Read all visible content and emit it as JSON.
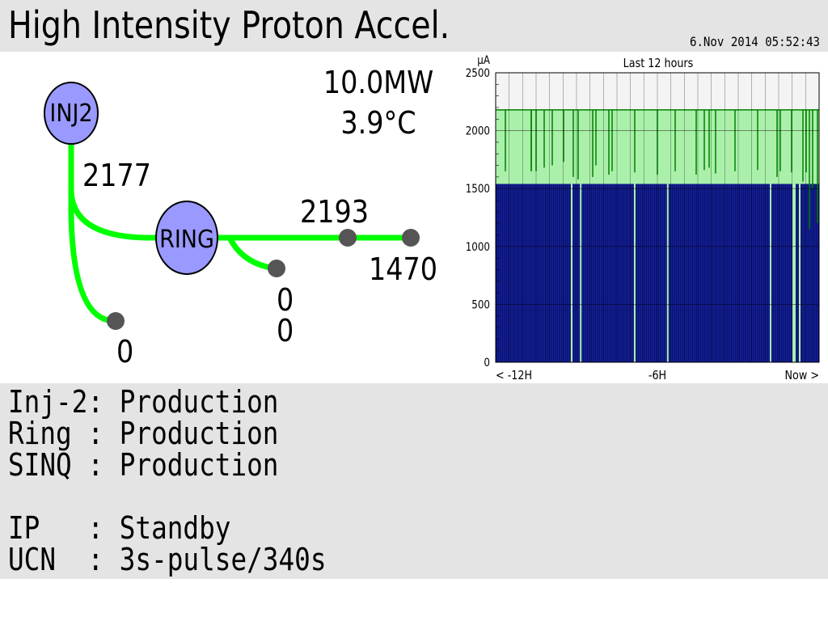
{
  "header": {
    "title": "High Intensity Proton Accel.",
    "datetime": "6.Nov 2014 05:52:43"
  },
  "diagram": {
    "inj2_label": "INJ2",
    "ring_label": "RING",
    "inj2_current": "2177",
    "ring_current": "2193",
    "sinq_current": "1470",
    "inj2_side_current": "0",
    "ring_branch_current_1": "0",
    "ring_branch_current_2": "0",
    "power": "10.0MW",
    "temperature": "3.9°C",
    "colors": {
      "beamline": "#00ff00",
      "node": "#9999ff",
      "endpoint": "#555555"
    }
  },
  "status": {
    "lines": [
      "Inj-2: Production",
      "Ring : Production",
      "SINQ : Production",
      "",
      "IP   : Standby",
      "UCN  : 3s-pulse/340s"
    ]
  },
  "chart_data": {
    "type": "area",
    "title": "Last 12 hours",
    "ylabel": "µA",
    "ylim": [
      0,
      2500
    ],
    "yticks": [
      0,
      500,
      1000,
      1500,
      2000,
      2500
    ],
    "xtick_labels": [
      "< -12H",
      "-6H",
      "Now >"
    ],
    "grid": true,
    "series": [
      {
        "color": "#008000",
        "fill": "#aaf0aa",
        "baseline": 2180,
        "dips": [
          [
            0.03,
            1650
          ],
          [
            0.11,
            1650
          ],
          [
            0.11,
            1650
          ],
          [
            0.125,
            1650
          ],
          [
            0.15,
            1680
          ],
          [
            0.175,
            1700
          ],
          [
            0.21,
            1730
          ],
          [
            0.24,
            1600
          ],
          [
            0.255,
            1580
          ],
          [
            0.3,
            1600
          ],
          [
            0.31,
            1700
          ],
          [
            0.35,
            1620
          ],
          [
            0.36,
            1650
          ],
          [
            0.43,
            1640
          ],
          [
            0.5,
            1620
          ],
          [
            0.555,
            1650
          ],
          [
            0.62,
            1620
          ],
          [
            0.645,
            1660
          ],
          [
            0.66,
            1680
          ],
          [
            0.68,
            1630
          ],
          [
            0.74,
            1650
          ],
          [
            0.81,
            1660
          ],
          [
            0.87,
            1600
          ],
          [
            0.88,
            1650
          ],
          [
            0.915,
            1640
          ],
          [
            0.95,
            1560
          ],
          [
            0.96,
            1640
          ],
          [
            0.97,
            1150
          ],
          [
            0.98,
            1500
          ],
          [
            0.995,
            1200
          ]
        ]
      },
      {
        "color": "#0000aa",
        "fill": "#1a2a6a",
        "baseline": 1540,
        "gaps": [
          0.235,
          0.263,
          0.43,
          0.532,
          0.85,
          0.92,
          0.925,
          0.94
        ]
      }
    ]
  }
}
